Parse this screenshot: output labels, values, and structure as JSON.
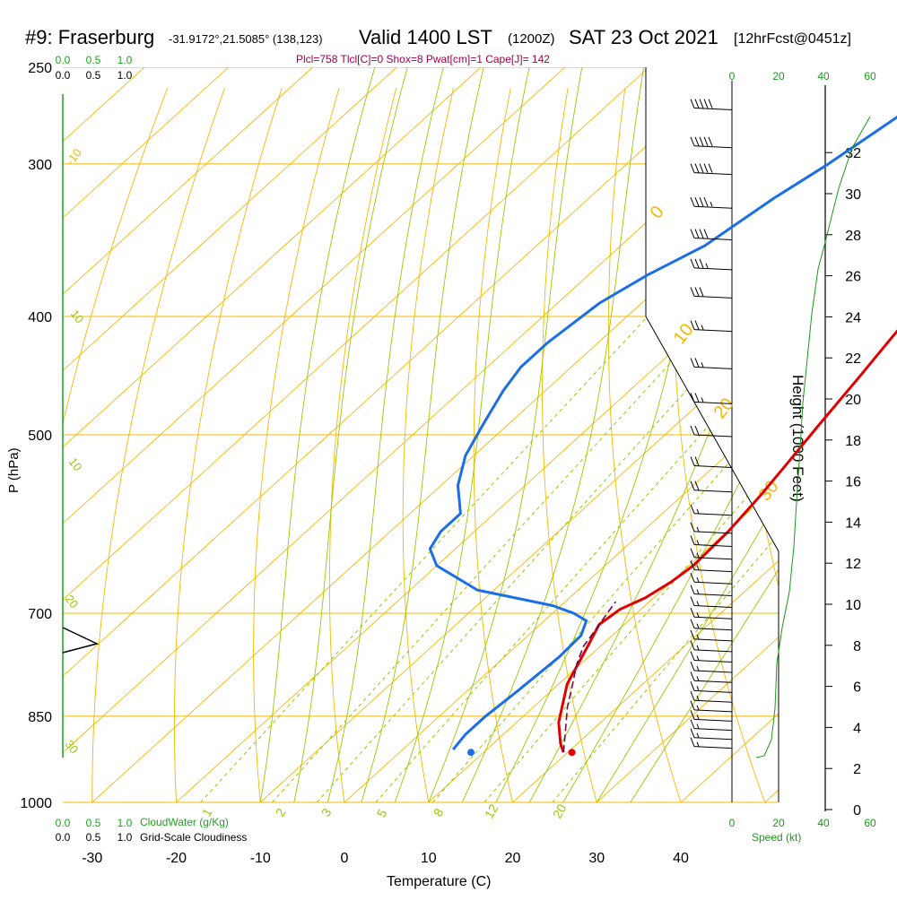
{
  "header": {
    "station": "#9: Fraserburg",
    "location": "-31.9172°,21.5085° (138,123)",
    "valid": "Valid 1400 LST",
    "utc": "(1200Z)",
    "date": "SAT 23 Oct 2021",
    "forecast": "[12hrFcst@0451z]",
    "indices": "Plcl=758 Tlcl[C]=0 Shox=8 Pwat[cm]=1 Cape[J]= 142"
  },
  "colors": {
    "isotherm": "#f5b800",
    "dry_adiabat": "#f5b800",
    "moist_adiabat": "#9ac800",
    "mixing_ratio": "#9ac800",
    "temperature": "#e00000",
    "dewpoint": "#1a6fe8",
    "parcel": "#6a0a4a",
    "height_axis": "#1a9a1a",
    "cloud": "#19a619",
    "indices_text": "#a0004a"
  },
  "chart_data": {
    "type": "line",
    "xlabel": "Temperature (C)",
    "ylabel": "P (hPa)",
    "xlim": [
      -35,
      45
    ],
    "x_ticks": [
      "-30",
      "-20",
      "-10",
      "0",
      "10",
      "20",
      "30",
      "40"
    ],
    "y_ticks": [
      "250",
      "300",
      "400",
      "500",
      "700",
      "850",
      "1000"
    ],
    "isotherm_labels": [
      "-10",
      "0",
      "10",
      "20",
      "30"
    ],
    "wet_bulb_labels": [
      "10",
      "10",
      "20",
      "30"
    ],
    "mixing_ratio_labels": [
      "1",
      "2",
      "3",
      "5",
      "8",
      "12",
      "20"
    ],
    "height_axis": {
      "label": "Height (1000 Feet)",
      "ticks": [
        "0",
        "2",
        "4",
        "6",
        "8",
        "10",
        "12",
        "14",
        "16",
        "18",
        "20",
        "22",
        "24",
        "26",
        "28",
        "30",
        "32"
      ]
    },
    "speed_axis": {
      "label": "Speed (kt)",
      "ticks": [
        "0",
        "20",
        "40",
        "60"
      ]
    },
    "cloud_axis": {
      "label_cloudwater": "CloudWater (g/Kg)",
      "label_cloudiness": "Grid-Scale Cloudiness",
      "ticks": [
        "0.0",
        "0.5",
        "1.0"
      ]
    },
    "series": [
      {
        "name": "temperature",
        "points": [
          [
            19.5,
            910
          ],
          [
            18,
            895
          ],
          [
            15,
            860
          ],
          [
            11,
            800
          ],
          [
            8.5,
            745
          ],
          [
            7,
            715
          ],
          [
            7.5,
            695
          ],
          [
            9,
            680
          ],
          [
            10,
            660
          ],
          [
            10.5,
            640
          ],
          [
            10.2,
            600
          ],
          [
            9.3,
            560
          ],
          [
            8.2,
            525
          ],
          [
            7,
            490
          ],
          [
            5.6,
            450
          ],
          [
            4.2,
            415
          ],
          [
            3,
            385
          ],
          [
            2,
            350
          ],
          [
            1.5,
            320
          ],
          [
            1.2,
            300
          ],
          [
            1.2,
            270
          ]
        ]
      },
      {
        "name": "dewpoint",
        "points": [
          [
            6,
            905
          ],
          [
            5.5,
            880
          ],
          [
            5.5,
            850
          ],
          [
            6,
            810
          ],
          [
            6.5,
            760
          ],
          [
            6.3,
            730
          ],
          [
            5,
            710
          ],
          [
            2.5,
            700
          ],
          [
            -1,
            690
          ],
          [
            -12,
            670
          ],
          [
            -20,
            640
          ],
          [
            -23,
            620
          ],
          [
            -24,
            600
          ],
          [
            -24,
            580
          ],
          [
            -28,
            550
          ],
          [
            -31,
            520
          ],
          [
            -33,
            490
          ],
          [
            -35,
            460
          ],
          [
            -36,
            440
          ],
          [
            -36,
            420
          ],
          [
            -35,
            390
          ],
          [
            -33,
            370
          ],
          [
            -30,
            350
          ],
          [
            -28,
            320
          ],
          [
            -26,
            300
          ],
          [
            -24,
            275
          ],
          [
            -22,
            260
          ]
        ]
      },
      {
        "name": "parcel",
        "points": [
          [
            19.5,
            910
          ],
          [
            17,
            875
          ],
          [
            14,
            835
          ],
          [
            12,
            805
          ],
          [
            9.5,
            770
          ],
          [
            8,
            745
          ],
          [
            7.2,
            720
          ],
          [
            6.5,
            700
          ],
          [
            6,
            685
          ]
        ]
      }
    ],
    "surface_points": {
      "temperature": 20.5,
      "dewpoint": 8.5
    },
    "wind_barbs": [
      {
        "p": 270,
        "speed_kt": 50
      },
      {
        "p": 290,
        "speed_kt": 50
      },
      {
        "p": 305,
        "speed_kt": 50
      },
      {
        "p": 325,
        "speed_kt": 45
      },
      {
        "p": 345,
        "speed_kt": 40
      },
      {
        "p": 365,
        "speed_kt": 35
      },
      {
        "p": 385,
        "speed_kt": 30
      },
      {
        "p": 410,
        "speed_kt": 25
      },
      {
        "p": 440,
        "speed_kt": 25
      },
      {
        "p": 470,
        "speed_kt": 25
      },
      {
        "p": 500,
        "speed_kt": 20
      },
      {
        "p": 530,
        "speed_kt": 20
      },
      {
        "p": 555,
        "speed_kt": 20
      },
      {
        "p": 580,
        "speed_kt": 15
      },
      {
        "p": 600,
        "speed_kt": 15
      },
      {
        "p": 615,
        "speed_kt": 15
      },
      {
        "p": 630,
        "speed_kt": 15
      },
      {
        "p": 645,
        "speed_kt": 15
      },
      {
        "p": 660,
        "speed_kt": 15
      },
      {
        "p": 675,
        "speed_kt": 15
      },
      {
        "p": 690,
        "speed_kt": 15
      },
      {
        "p": 705,
        "speed_kt": 15
      },
      {
        "p": 720,
        "speed_kt": 15
      },
      {
        "p": 735,
        "speed_kt": 15
      },
      {
        "p": 750,
        "speed_kt": 15
      },
      {
        "p": 765,
        "speed_kt": 15
      },
      {
        "p": 780,
        "speed_kt": 15
      },
      {
        "p": 795,
        "speed_kt": 15
      },
      {
        "p": 810,
        "speed_kt": 15
      },
      {
        "p": 825,
        "speed_kt": 15
      },
      {
        "p": 840,
        "speed_kt": 15
      },
      {
        "p": 855,
        "speed_kt": 15
      },
      {
        "p": 870,
        "speed_kt": 15
      },
      {
        "p": 885,
        "speed_kt": 15
      },
      {
        "p": 900,
        "speed_kt": 15
      }
    ]
  }
}
